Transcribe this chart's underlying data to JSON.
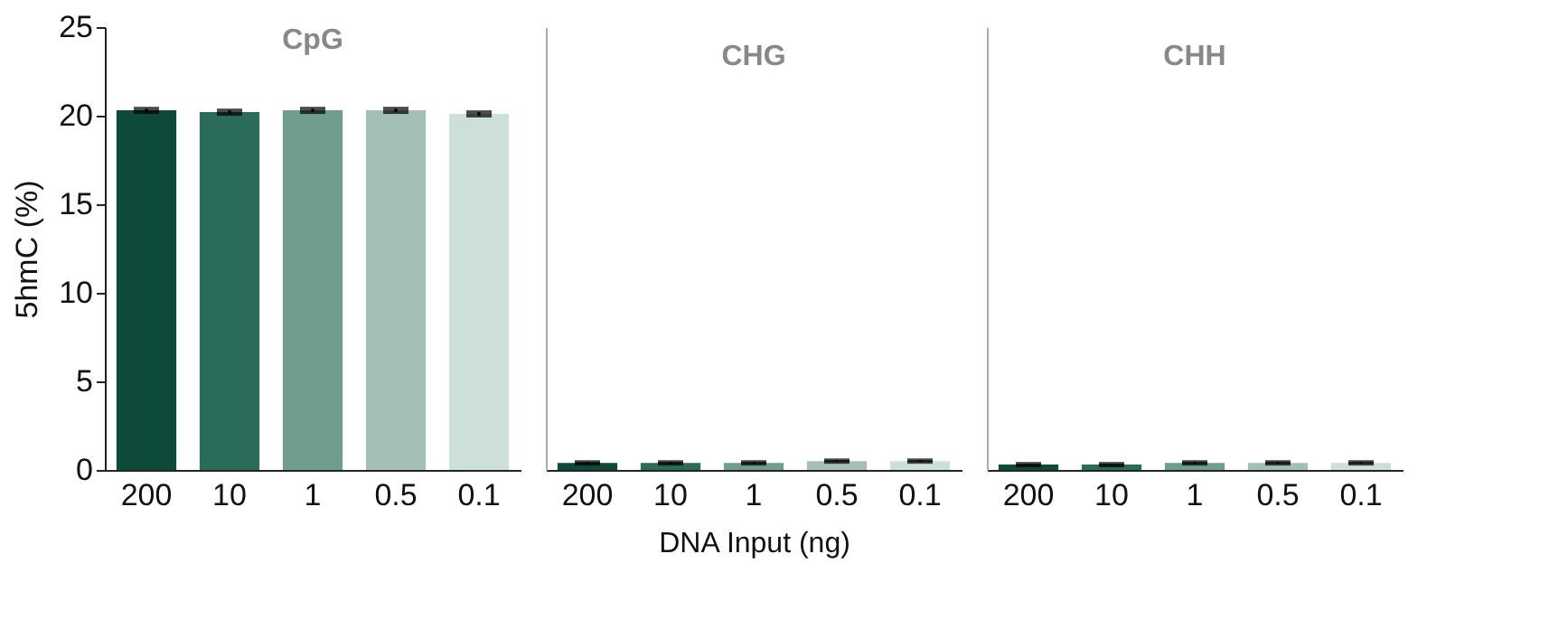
{
  "chart_data": [
    {
      "type": "bar",
      "title": "CpG",
      "ylabel": "5hmC (%)",
      "categories": [
        "200",
        "10",
        "1",
        "0.5",
        "0.1"
      ],
      "values": [
        20.3,
        20.2,
        20.3,
        20.3,
        20.1
      ],
      "errors": [
        0.1,
        0.1,
        0.1,
        0.1,
        0.1
      ],
      "colors": [
        "#0e4a3b",
        "#2a6b5a",
        "#6f9e8f",
        "#a3c0b6",
        "#cddfd9"
      ],
      "ylim": [
        0,
        25
      ],
      "yticks": [
        0,
        5,
        10,
        15,
        20,
        25
      ]
    },
    {
      "type": "bar",
      "title": "CHG",
      "xlabel": "DNA Input (ng)",
      "categories": [
        "200",
        "10",
        "1",
        "0.5",
        "0.1"
      ],
      "values": [
        0.4,
        0.4,
        0.4,
        0.5,
        0.5
      ],
      "errors": [
        0.05,
        0.05,
        0.05,
        0.05,
        0.05
      ],
      "colors": [
        "#0e4a3b",
        "#2a6b5a",
        "#6f9e8f",
        "#a3c0b6",
        "#cddfd9"
      ],
      "ylim": [
        0,
        25
      ],
      "yticks": [
        0,
        5,
        10,
        15,
        20,
        25
      ],
      "tick_labels": "x"
    },
    {
      "type": "bar",
      "title": "CHH",
      "categories": [
        "200",
        "10",
        "1",
        "0.5",
        "0.1"
      ],
      "values": [
        0.3,
        0.3,
        0.4,
        0.4,
        0.4
      ],
      "errors": [
        0.05,
        0.05,
        0.05,
        0.05,
        0.05
      ],
      "colors": [
        "#0e4a3b",
        "#2a6b5a",
        "#6f9e8f",
        "#a3c0b6",
        "#cddfd9"
      ],
      "ylim": [
        0,
        25
      ],
      "yticks": [
        0,
        5,
        10,
        15,
        20,
        25
      ],
      "tick_labels": "x"
    }
  ]
}
